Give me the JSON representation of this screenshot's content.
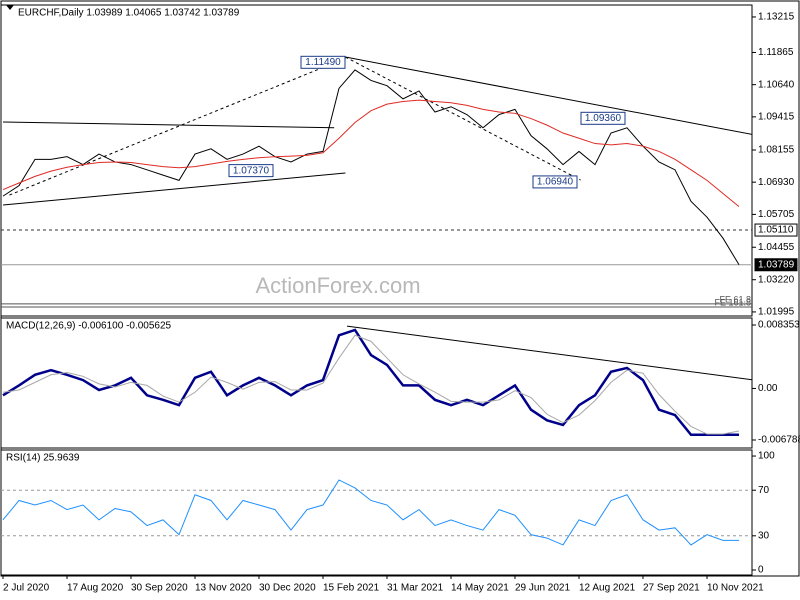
{
  "chart_data": [
    {
      "type": "line",
      "title": "EURCHF,Daily  1.03989 1.04065 1.03742 1.03789",
      "ylim": [
        1.0184,
        1.1367
      ],
      "yticks": [
        1.13215,
        1.11865,
        {
          "value": 1.1064,
          "label": "1.10640"
        },
        1.09415,
        1.08155,
        {
          "value": 1.0693,
          "label": "1.06930"
        },
        1.05705,
        1.04455,
        {
          "value": 1.0322,
          "label": "1.03220"
        },
        1.01995
      ],
      "series": [
        {
          "color": "#000000",
          "values": [
            1.064,
            1.068,
            1.078,
            1.078,
            1.079,
            1.076,
            1.08,
            1.077,
            1.076,
            1.074,
            1.072,
            1.07,
            1.08,
            1.082,
            1.078,
            1.08,
            1.083,
            1.079,
            1.077,
            1.08,
            1.081,
            1.105,
            1.112,
            1.108,
            1.106,
            1.101,
            1.104,
            1.096,
            1.098,
            1.095,
            1.09,
            1.095,
            1.097,
            1.087,
            1.082,
            1.076,
            1.081,
            1.076,
            1.088,
            1.09,
            1.083,
            1.077,
            1.074,
            1.062,
            1.056,
            1.048,
            1.0379
          ]
        },
        {
          "color": "#e02a24",
          "values": [
            1.0665,
            1.069,
            1.0715,
            1.0735,
            1.075,
            1.076,
            1.0768,
            1.077,
            1.0768,
            1.076,
            1.0752,
            1.0748,
            1.0752,
            1.0762,
            1.0772,
            1.078,
            1.0786,
            1.079,
            1.0792,
            1.0795,
            1.0805,
            1.086,
            1.092,
            1.0965,
            1.099,
            1.1,
            1.1005,
            1.1,
            1.0995,
            1.0985,
            1.097,
            1.096,
            1.0955,
            1.0935,
            1.091,
            1.088,
            1.086,
            1.084,
            1.0835,
            1.084,
            1.083,
            1.081,
            1.078,
            1.074,
            1.07,
            1.065,
            1.06
          ]
        }
      ],
      "trendlines": [
        {
          "style": "solid",
          "points": [
            [
              0,
              1.0922
            ],
            [
              20.7,
              1.09
            ]
          ]
        },
        {
          "style": "solid",
          "points": [
            [
              0,
              1.0606
            ],
            [
              21.4,
              1.0728
            ]
          ]
        },
        {
          "style": "dashed",
          "points": [
            [
              0.4,
              1.0644
            ],
            [
              21.6,
              1.1169
            ]
          ]
        },
        {
          "style": "solid",
          "points": [
            [
              21.4,
              1.1169
            ],
            [
              48.6,
              1.0854
            ]
          ]
        },
        {
          "style": "dashed",
          "points": [
            [
              21.4,
              1.1169
            ],
            [
              36.1,
              1.0701
            ]
          ]
        }
      ],
      "annotations": [
        {
          "label": "1.11490",
          "value": 1.1149,
          "x": 21.5
        },
        {
          "label": "1.07370",
          "value": 1.0737,
          "x": 17
        },
        {
          "label": "1.06940",
          "value": 1.0694,
          "x": 36
        },
        {
          "label": "1.09360",
          "value": 1.0936,
          "x": 39
        }
      ],
      "price_levels": [
        {
          "label": "1.05110",
          "value": 1.0511,
          "style": "dashed"
        },
        {
          "label": "1.03789",
          "value": 1.03789,
          "style": "current"
        }
      ],
      "fe_levels": [
        {
          "label": "FE 61.8",
          "value": 1.023
        },
        {
          "label": "FE 161.8",
          "value": 1.0218
        }
      ],
      "watermark": "ActionForex.com"
    },
    {
      "type": "line",
      "title": "MACD(12,26,9) -0.006100 -0.005625",
      "ylim": [
        -0.007841,
        0.009275
      ],
      "yticks": [
        0.008353,
        {
          "value": 0,
          "label": "0.00"
        },
        -0.006788
      ],
      "series": [
        {
          "color": "#00008b",
          "values": [
            -0.0009,
            0.0004,
            0.0018,
            0.0024,
            0.0018,
            0.0011,
            -0.0002,
            0.0004,
            0.0014,
            -0.0009,
            -0.0015,
            -0.0022,
            0.0014,
            0.0022,
            -0.0009,
            0.0004,
            0.0014,
            0.0004,
            -0.0009,
            0.0004,
            0.0011,
            0.007,
            0.0077,
            0.0044,
            0.0031,
            0.0004,
            0.0004,
            -0.0015,
            -0.0022,
            -0.0015,
            -0.0022,
            -0.0009,
            0.0004,
            -0.0028,
            -0.0042,
            -0.0048,
            -0.0022,
            -0.0009,
            0.0022,
            0.0027,
            0.0011,
            -0.0028,
            -0.0035,
            -0.0061,
            -0.0061,
            -0.0061,
            -0.0061
          ]
        },
        {
          "color": "#a8a8a8",
          "values": [
            -0.0005,
            -0.0002,
            0.0008,
            0.0018,
            0.0021,
            0.0016,
            0.0006,
            0.0002,
            0.0008,
            0.0004,
            -0.001,
            -0.0018,
            -0.0005,
            0.0015,
            0.0008,
            -0.0001,
            0.0008,
            0.0009,
            -0.0002,
            -0.0002,
            0.0007,
            0.004,
            0.007,
            0.0062,
            0.004,
            0.0018,
            0.0006,
            -0.0005,
            -0.0017,
            -0.0018,
            -0.0018,
            -0.0015,
            -0.0003,
            -0.0012,
            -0.0034,
            -0.0045,
            -0.0035,
            -0.0016,
            0.0008,
            0.0024,
            0.002,
            -0.0008,
            -0.003,
            -0.005,
            -0.006,
            -0.006,
            -0.0056
          ]
        }
      ],
      "trendlines": [
        {
          "style": "solid",
          "points": [
            [
              21.5,
              0.0082
            ],
            [
              48.4,
              0.0007
            ]
          ]
        }
      ]
    },
    {
      "type": "line",
      "title": "RSI(14) 25.9639",
      "ylim": [
        -4.4,
        105.3
      ],
      "yticks": [
        100,
        70,
        30,
        0
      ],
      "levels": [
        70,
        30
      ],
      "categories": [
        "2 Jul 2020",
        null,
        null,
        null,
        "17 Aug 2020",
        null,
        null,
        null,
        "30 Sep 2020",
        null,
        null,
        null,
        "13 Nov 2020",
        null,
        null,
        null,
        "30 Dec 2020",
        null,
        null,
        null,
        "15 Feb 2021",
        null,
        null,
        null,
        "31 Mar 2021",
        null,
        null,
        null,
        "14 May 2021",
        null,
        null,
        null,
        "29 Jun 2021",
        null,
        null,
        null,
        "12 Aug 2021",
        null,
        null,
        null,
        "27 Sep 2021",
        null,
        null,
        null,
        "10 Nov 2021",
        null,
        null
      ],
      "series": [
        {
          "color": "#1e90ff",
          "values": [
            44,
            61,
            57,
            61,
            53,
            57,
            44,
            54,
            51,
            39,
            44,
            31,
            66,
            61,
            44,
            61,
            57,
            53,
            35,
            53,
            57,
            79,
            72,
            61,
            57,
            44,
            53,
            39,
            44,
            39,
            35,
            53,
            48,
            31,
            28,
            22,
            44,
            39,
            61,
            66,
            44,
            35,
            37,
            22,
            31,
            26,
            25.96
          ]
        }
      ]
    }
  ]
}
